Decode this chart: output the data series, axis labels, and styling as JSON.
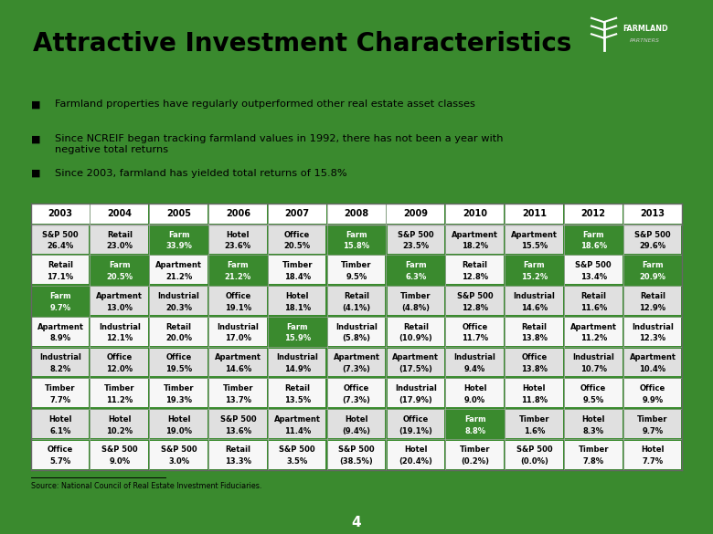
{
  "title": "Attractive Investment Characteristics",
  "bullets": [
    "Farmland properties have regularly outperformed other real estate asset classes",
    "Since NCREIF began tracking farmland values in 1992, there has not been a year with\nnegative total returns",
    "Since 2003, farmland has yielded total returns of 15.8%"
  ],
  "source": "Source: National Council of Real Estate Investment Fiduciaries.",
  "page_number": "4",
  "bg_color": "#3a8a2e",
  "inner_bg": "#efefef",
  "green_cell": "#3a8a2e",
  "years": [
    "2003",
    "2004",
    "2005",
    "2006",
    "2007",
    "2008",
    "2009",
    "2010",
    "2011",
    "2012",
    "2013"
  ],
  "table": [
    [
      [
        "S&P 500",
        "26.4%",
        false
      ],
      [
        "Retail",
        "23.0%",
        false
      ],
      [
        "Farm",
        "33.9%",
        true
      ],
      [
        "Hotel",
        "23.6%",
        false
      ],
      [
        "Office",
        "20.5%",
        false
      ],
      [
        "Farm",
        "15.8%",
        true
      ],
      [
        "S&P 500",
        "23.5%",
        false
      ],
      [
        "Apartment",
        "18.2%",
        false
      ],
      [
        "Apartment",
        "15.5%",
        false
      ],
      [
        "Farm",
        "18.6%",
        true
      ],
      [
        "S&P 500",
        "29.6%",
        false
      ]
    ],
    [
      [
        "Retail",
        "17.1%",
        false
      ],
      [
        "Farm",
        "20.5%",
        true
      ],
      [
        "Apartment",
        "21.2%",
        false
      ],
      [
        "Farm",
        "21.2%",
        true
      ],
      [
        "Timber",
        "18.4%",
        false
      ],
      [
        "Timber",
        "9.5%",
        false
      ],
      [
        "Farm",
        "6.3%",
        true
      ],
      [
        "Retail",
        "12.8%",
        false
      ],
      [
        "Farm",
        "15.2%",
        true
      ],
      [
        "S&P 500",
        "13.4%",
        false
      ],
      [
        "Farm",
        "20.9%",
        true
      ]
    ],
    [
      [
        "Farm",
        "9.7%",
        true
      ],
      [
        "Apartment",
        "13.0%",
        false
      ],
      [
        "Industrial",
        "20.3%",
        false
      ],
      [
        "Office",
        "19.1%",
        false
      ],
      [
        "Hotel",
        "18.1%",
        false
      ],
      [
        "Retail",
        "(4.1%)",
        false
      ],
      [
        "Timber",
        "(4.8%)",
        false
      ],
      [
        "S&P 500",
        "12.8%",
        false
      ],
      [
        "Industrial",
        "14.6%",
        false
      ],
      [
        "Retail",
        "11.6%",
        false
      ],
      [
        "Retail",
        "12.9%",
        false
      ]
    ],
    [
      [
        "Apartment",
        "8.9%",
        false
      ],
      [
        "Industrial",
        "12.1%",
        false
      ],
      [
        "Retail",
        "20.0%",
        false
      ],
      [
        "Industrial",
        "17.0%",
        false
      ],
      [
        "Farm",
        "15.9%",
        true
      ],
      [
        "Industrial",
        "(5.8%)",
        false
      ],
      [
        "Retail",
        "(10.9%)",
        false
      ],
      [
        "Office",
        "11.7%",
        false
      ],
      [
        "Retail",
        "13.8%",
        false
      ],
      [
        "Apartment",
        "11.2%",
        false
      ],
      [
        "Industrial",
        "12.3%",
        false
      ]
    ],
    [
      [
        "Industrial",
        "8.2%",
        false
      ],
      [
        "Office",
        "12.0%",
        false
      ],
      [
        "Office",
        "19.5%",
        false
      ],
      [
        "Apartment",
        "14.6%",
        false
      ],
      [
        "Industrial",
        "14.9%",
        false
      ],
      [
        "Apartment",
        "(7.3%)",
        false
      ],
      [
        "Apartment",
        "(17.5%)",
        false
      ],
      [
        "Industrial",
        "9.4%",
        false
      ],
      [
        "Office",
        "13.8%",
        false
      ],
      [
        "Industrial",
        "10.7%",
        false
      ],
      [
        "Apartment",
        "10.4%",
        false
      ]
    ],
    [
      [
        "Timber",
        "7.7%",
        false
      ],
      [
        "Timber",
        "11.2%",
        false
      ],
      [
        "Timber",
        "19.3%",
        false
      ],
      [
        "Timber",
        "13.7%",
        false
      ],
      [
        "Retail",
        "13.5%",
        false
      ],
      [
        "Office",
        "(7.3%)",
        false
      ],
      [
        "Industrial",
        "(17.9%)",
        false
      ],
      [
        "Hotel",
        "9.0%",
        false
      ],
      [
        "Hotel",
        "11.8%",
        false
      ],
      [
        "Office",
        "9.5%",
        false
      ],
      [
        "Office",
        "9.9%",
        false
      ]
    ],
    [
      [
        "Hotel",
        "6.1%",
        false
      ],
      [
        "Hotel",
        "10.2%",
        false
      ],
      [
        "Hotel",
        "19.0%",
        false
      ],
      [
        "S&P 500",
        "13.6%",
        false
      ],
      [
        "Apartment",
        "11.4%",
        false
      ],
      [
        "Hotel",
        "(9.4%)",
        false
      ],
      [
        "Office",
        "(19.1%)",
        false
      ],
      [
        "Farm",
        "8.8%",
        true
      ],
      [
        "Timber",
        "1.6%",
        false
      ],
      [
        "Hotel",
        "8.3%",
        false
      ],
      [
        "Timber",
        "9.7%",
        false
      ]
    ],
    [
      [
        "Office",
        "5.7%",
        false
      ],
      [
        "S&P 500",
        "9.0%",
        false
      ],
      [
        "S&P 500",
        "3.0%",
        false
      ],
      [
        "Retail",
        "13.3%",
        false
      ],
      [
        "S&P 500",
        "3.5%",
        false
      ],
      [
        "S&P 500",
        "(38.5%)",
        false
      ],
      [
        "Hotel",
        "(20.4%)",
        false
      ],
      [
        "Timber",
        "(0.2%)",
        false
      ],
      [
        "S&P 500",
        "(0.0%)",
        false
      ],
      [
        "Timber",
        "7.8%",
        false
      ],
      [
        "Hotel",
        "7.7%",
        false
      ]
    ]
  ]
}
